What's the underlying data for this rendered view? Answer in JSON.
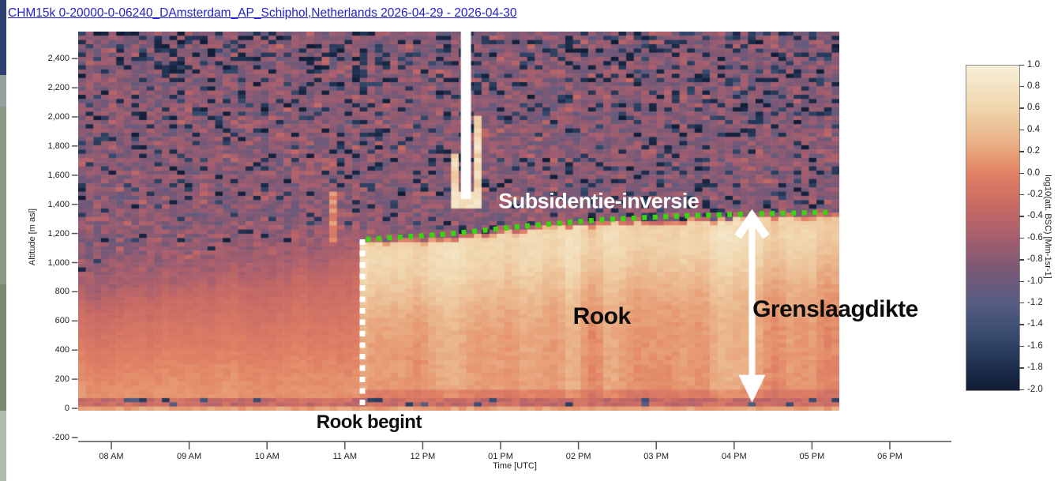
{
  "window": {
    "title_link": "CHM15k 0-20000-0-06240_DAmsterdam_AP_Schiphol,Netherlands 2026-04-29 - 2026-04-30",
    "title_link_color": "#2323cc"
  },
  "chart_data": {
    "type": "heatmap",
    "x_axis": {
      "label": "Time [UTC]",
      "ticks": [
        {
          "t": 8,
          "label": "08 AM"
        },
        {
          "t": 9,
          "label": "09 AM"
        },
        {
          "t": 10,
          "label": "10 AM"
        },
        {
          "t": 11,
          "label": "11 AM"
        },
        {
          "t": 12,
          "label": "12 PM"
        },
        {
          "t": 13,
          "label": "01 PM"
        },
        {
          "t": 14,
          "label": "02 PM"
        },
        {
          "t": 15,
          "label": "03 PM"
        },
        {
          "t": 16,
          "label": "04 PM"
        },
        {
          "t": 17,
          "label": "05 PM"
        },
        {
          "t": 18,
          "label": "06 PM"
        }
      ],
      "data_range_hours": [
        7.57,
        17.35
      ]
    },
    "y_axis": {
      "label": "Altitude [m asl]",
      "ticks": [
        {
          "alt": 2400,
          "label": "2,400"
        },
        {
          "alt": 2200,
          "label": "2,200"
        },
        {
          "alt": 2000,
          "label": "2,000"
        },
        {
          "alt": 1800,
          "label": "1,800"
        },
        {
          "alt": 1600,
          "label": "1,600"
        },
        {
          "alt": 1400,
          "label": "1,400"
        },
        {
          "alt": 1200,
          "label": "1,200"
        },
        {
          "alt": 1000,
          "label": "1,000"
        },
        {
          "alt": 800,
          "label": "800"
        },
        {
          "alt": 600,
          "label": "600"
        },
        {
          "alt": 400,
          "label": "400"
        },
        {
          "alt": 200,
          "label": "200"
        },
        {
          "alt": 0,
          "label": "0"
        },
        {
          "alt": -200,
          "label": "-200"
        }
      ],
      "data_range_m": [
        0,
        2585
      ]
    },
    "colorbar": {
      "label": "log10(att. BSC) [Mm-1sr-1]",
      "vmin": -2.0,
      "vmax": 1.0,
      "tick_values": [
        1.0,
        0.8,
        0.6,
        0.4,
        0.2,
        0.0,
        -0.2,
        -0.4,
        -0.6,
        -0.8,
        -1.0,
        -1.2,
        -1.4,
        -1.6,
        -1.8,
        -2.0
      ],
      "tick_labels": [
        "1.0",
        "0.8",
        "0.6",
        "0.4",
        "0.2",
        "0.0",
        "-0.2",
        "-0.4",
        "-0.6",
        "-0.8",
        "-1.0",
        "-1.2",
        "-1.4",
        "-1.6",
        "-1.8",
        "-2.0"
      ],
      "stops": [
        [
          1.0,
          "#f7f0d8"
        ],
        [
          0.6,
          "#f0d5ac"
        ],
        [
          0.3,
          "#eab288"
        ],
        [
          0.1,
          "#e5936d"
        ],
        [
          0.0,
          "#e08064"
        ],
        [
          -0.3,
          "#c86a64"
        ],
        [
          -0.6,
          "#a55e6e"
        ],
        [
          -0.9,
          "#785876"
        ],
        [
          -1.2,
          "#555c82"
        ],
        [
          -1.5,
          "#374b6e"
        ],
        [
          -1.8,
          "#1c2c4b"
        ],
        [
          -2.0,
          "#101c34"
        ]
      ]
    },
    "features": {
      "smoke_onset_hour": 11.22,
      "inversion_line_points": [
        [
          11.27,
          1160
        ],
        [
          12.3,
          1195
        ],
        [
          13.3,
          1250
        ],
        [
          14.3,
          1295
        ],
        [
          15.3,
          1320
        ],
        [
          16.3,
          1335
        ],
        [
          17.2,
          1345
        ]
      ],
      "inversion_line_color": "#3bd40e",
      "onset_line_color": "#ffffff",
      "boundary_arrow": {
        "t": 16.23,
        "alt_top_m": 1330,
        "alt_bottom_m": 40,
        "color": "#ffffff"
      },
      "data_gap": {
        "t_start": 12.49,
        "t_end": 12.62,
        "alt_bottom_m": 1437
      },
      "preonset_layer_top_m": [
        820,
        1120
      ]
    },
    "annotations": [
      {
        "id": "subsidentie-inversie",
        "text": "Subsidentie-inversie",
        "t": 14.26,
        "alt": 1420,
        "color": "#ffffff",
        "size": 27
      },
      {
        "id": "rook",
        "text": "Rook",
        "t": 14.3,
        "alt": 630,
        "color": "#0d0d0d",
        "size": 30
      },
      {
        "id": "grenslaagdikte",
        "text": "Grenslaagdikte",
        "t": 17.3,
        "alt": 680,
        "color": "#0d0d0d",
        "size": 30
      },
      {
        "id": "rook-begint",
        "text": "Rook begint",
        "t": 11.31,
        "alt": -95,
        "color": "#0d0d0d",
        "size": 24
      }
    ]
  }
}
